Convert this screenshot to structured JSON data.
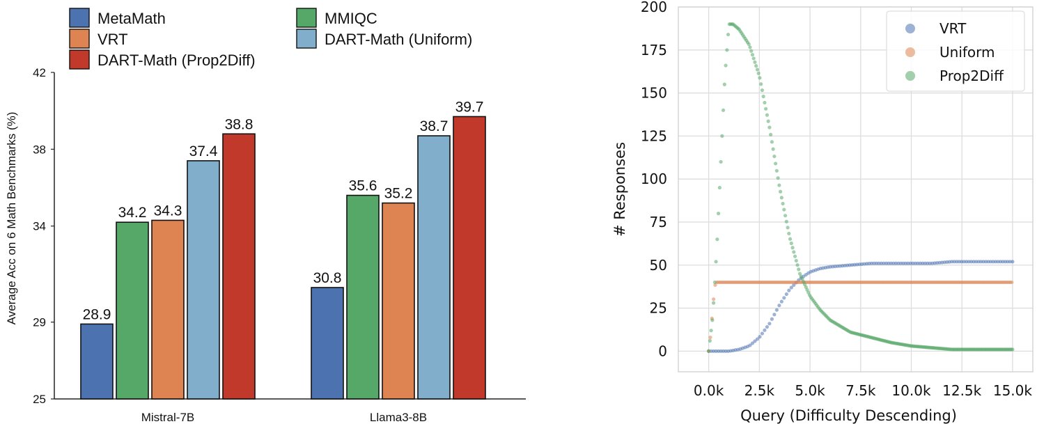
{
  "chart_data": [
    {
      "type": "bar",
      "title": "",
      "xlabel": "",
      "ylabel": "Average Acc on 6 Math Benchmarks (%)",
      "ylim": [
        25,
        42
      ],
      "yticks": [
        25,
        29,
        34,
        38,
        42
      ],
      "categories": [
        "Mistral-7B",
        "Llama3-8B"
      ],
      "legend_position": "top",
      "series": [
        {
          "name": "MetaMath",
          "color": "#4c72b0",
          "values": [
            28.9,
            30.8
          ],
          "labels": [
            "28.9",
            "30.8"
          ]
        },
        {
          "name": "MMIQC",
          "color": "#55a868",
          "values": [
            34.2,
            35.6
          ],
          "labels": [
            "34.2",
            "35.6"
          ]
        },
        {
          "name": "VRT",
          "color": "#dd8452",
          "values": [
            34.3,
            35.2
          ],
          "labels": [
            "34.3",
            "35.2"
          ]
        },
        {
          "name": "DART-Math (Uniform)",
          "color": "#81aecb",
          "values": [
            37.4,
            38.7
          ],
          "labels": [
            "37.4",
            "38.7"
          ]
        },
        {
          "name": "DART-Math (Prop2Diff)",
          "color": "#c0392b",
          "values": [
            38.8,
            39.7
          ],
          "labels": [
            "38.8",
            "39.7"
          ]
        }
      ],
      "legend_order": [
        "MetaMath",
        "MMIQC",
        "VRT",
        "DART-Math (Uniform)",
        "DART-Math (Prop2Diff)"
      ]
    },
    {
      "type": "scatter",
      "title": "",
      "xlabel": "Query (Difficulty Descending)",
      "ylabel": "# Responses",
      "xlim": [
        -1500,
        16000
      ],
      "ylim": [
        -12,
        200
      ],
      "xticks": [
        0,
        2500,
        5000,
        7500,
        10000,
        12500,
        15000
      ],
      "xtick_labels": [
        "0.0k",
        "2.5k",
        "5.0k",
        "7.5k",
        "10.0k",
        "12.5k",
        "15.0k"
      ],
      "yticks": [
        0,
        25,
        50,
        75,
        100,
        125,
        150,
        175,
        200
      ],
      "ytick_labels": [
        "0",
        "25",
        "50",
        "75",
        "100",
        "125",
        "150",
        "175",
        "200"
      ],
      "grid": true,
      "legend_position": "top-right",
      "series": [
        {
          "name": "VRT",
          "color": "#4c72b0",
          "x": [
            0,
            500,
            1000,
            1500,
            2000,
            2500,
            3000,
            3500,
            4000,
            4500,
            5000,
            5500,
            6000,
            7000,
            8000,
            9000,
            10000,
            11000,
            12000,
            13000,
            14000,
            15000
          ],
          "y": [
            0,
            0,
            0,
            1,
            3,
            8,
            16,
            27,
            36,
            42,
            46,
            48,
            49,
            50,
            51,
            51,
            51,
            51,
            52,
            52,
            52,
            52
          ]
        },
        {
          "name": "Uniform",
          "color": "#dd8452",
          "x": [
            0,
            100,
            200,
            300,
            400,
            1000,
            5000,
            10000,
            15000
          ],
          "y": [
            0,
            10,
            25,
            38,
            40,
            40,
            40,
            40,
            40
          ]
        },
        {
          "name": "Prop2Diff",
          "color": "#55a868",
          "x": [
            0,
            200,
            400,
            600,
            800,
            1000,
            1200,
            1500,
            2000,
            2500,
            3000,
            3500,
            4000,
            4500,
            5000,
            5500,
            6000,
            7000,
            8000,
            9000,
            10000,
            11000,
            12000,
            13000,
            14000,
            15000
          ],
          "y": [
            0,
            20,
            60,
            110,
            160,
            190,
            190,
            187,
            178,
            160,
            130,
            95,
            66,
            45,
            32,
            24,
            18,
            11,
            8,
            5,
            3,
            2,
            1,
            1,
            1,
            1
          ]
        }
      ]
    }
  ]
}
